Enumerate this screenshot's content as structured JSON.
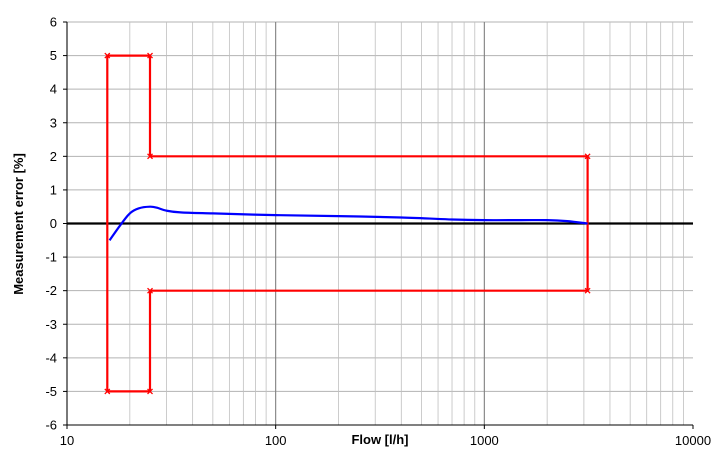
{
  "chart_data": {
    "type": "line",
    "title": "",
    "xlabel": "Flow [l/h]",
    "ylabel": "Measurement error [%]",
    "x_scale": "log",
    "xlim": [
      10,
      10000
    ],
    "ylim": [
      -6,
      6
    ],
    "x_ticks": [
      "10",
      "100",
      "1000",
      "10000"
    ],
    "y_ticks": [
      "6",
      "5",
      "4",
      "3",
      "2",
      "1",
      "0",
      "-1",
      "-2",
      "-3",
      "-4",
      "-5",
      "-6"
    ],
    "grid": true,
    "legend": "none",
    "series": [
      {
        "color": "#ff0000",
        "marker": "x",
        "values": [
          {
            "x": 25,
            "y": 0
          }
        ],
        "outline": [
          [
            15.6,
            5
          ],
          [
            25,
            5
          ],
          [
            25,
            2
          ],
          [
            3125,
            2
          ],
          [
            3125,
            -2
          ],
          [
            25,
            -2
          ],
          [
            25,
            -5
          ],
          [
            15.6,
            -5
          ],
          [
            15.6,
            5
          ]
        ]
      },
      {
        "color": "#0000ff",
        "marker": "none",
        "values": [
          [
            16,
            -0.5
          ],
          [
            18,
            -0.05
          ],
          [
            20,
            0.3
          ],
          [
            22,
            0.45
          ],
          [
            25,
            0.5
          ],
          [
            27,
            0.47
          ],
          [
            30,
            0.38
          ],
          [
            35,
            0.33
          ],
          [
            50,
            0.3
          ],
          [
            100,
            0.25
          ],
          [
            200,
            0.22
          ],
          [
            400,
            0.18
          ],
          [
            700,
            0.12
          ],
          [
            1000,
            0.1
          ],
          [
            1500,
            0.1
          ],
          [
            2000,
            0.1
          ],
          [
            2500,
            0.07
          ],
          [
            3125,
            0
          ]
        ]
      }
    ]
  }
}
